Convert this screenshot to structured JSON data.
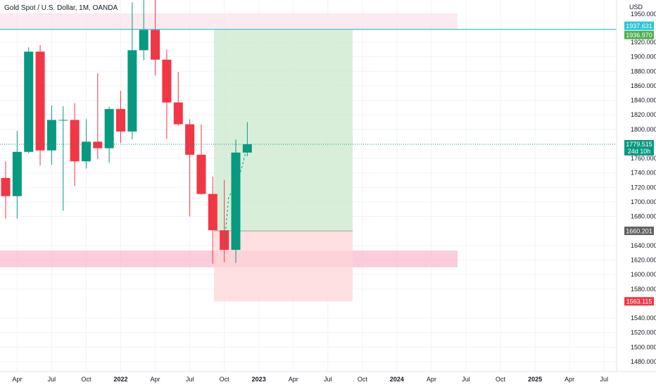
{
  "header": {
    "title": "Gold Spot / U.S. Dollar, 1M, OANDA",
    "currency": "USD"
  },
  "price_scale": {
    "labels": [
      "1920.000",
      "1900.000",
      "1880.000",
      "1860.000",
      "1840.000",
      "1820.000",
      "1800.000",
      "1760.000",
      "1740.000",
      "1720.000",
      "1700.000",
      "1680.000",
      "1640.000",
      "1620.000",
      "1600.000",
      "1580.000",
      "1540.000",
      "1520.000",
      "1500.000",
      "1480.000"
    ]
  },
  "time_scale": {
    "labels": [
      {
        "text": "Apr",
        "bold": false
      },
      {
        "text": "Jul",
        "bold": false
      },
      {
        "text": "Oct",
        "bold": false
      },
      {
        "text": "2022",
        "bold": true
      },
      {
        "text": "Apr",
        "bold": false
      },
      {
        "text": "Jul",
        "bold": false
      },
      {
        "text": "Oct",
        "bold": false
      },
      {
        "text": "2023",
        "bold": true
      },
      {
        "text": "Apr",
        "bold": false
      },
      {
        "text": "Jul",
        "bold": false
      },
      {
        "text": "Oct",
        "bold": false
      },
      {
        "text": "2024",
        "bold": true
      },
      {
        "text": "Apr",
        "bold": false
      },
      {
        "text": "Jul",
        "bold": false
      },
      {
        "text": "Oct",
        "bold": false
      },
      {
        "text": "2025",
        "bold": true
      },
      {
        "text": "Apr",
        "bold": false
      },
      {
        "text": "Jul",
        "bold": false
      }
    ]
  },
  "badges": {
    "resistance_price": "1937.631",
    "target_price": "1936.970",
    "current_price": "1779.515",
    "countdown": "24d 10h",
    "entry_price": "1660.201",
    "stop_price": "1563.115",
    "top_clipped": "1950.000"
  },
  "colors": {
    "up": "#089981",
    "down": "#f23645",
    "target_zone": "#c9e7c9",
    "stop_zone": "#ffd6d6",
    "supply_zone": "#fce4ec",
    "demand_zone": "#f8bbd0",
    "resistance_line": "#00bcd4"
  },
  "chart_data": {
    "type": "candlestick",
    "symbol": "Gold Spot / U.S. Dollar",
    "interval": "1M",
    "source": "OANDA",
    "x": [
      "2021-03",
      "2021-04",
      "2021-05",
      "2021-06",
      "2021-07",
      "2021-08",
      "2021-09",
      "2021-10",
      "2021-11",
      "2021-12",
      "2022-01",
      "2022-02",
      "2022-03",
      "2022-04",
      "2022-05",
      "2022-06",
      "2022-07",
      "2022-08",
      "2022-09",
      "2022-10",
      "2022-11",
      "2022-12"
    ],
    "open": [
      1733,
      1708,
      1769,
      1907,
      1771,
      1813,
      1813,
      1756,
      1783,
      1774,
      1828,
      1797,
      1909,
      1937,
      1896,
      1837,
      1807,
      1765,
      1711,
      1661,
      1634,
      1768
    ],
    "high": [
      1756,
      1798,
      1913,
      1916,
      1833,
      1832,
      1836,
      1814,
      1877,
      1831,
      1853,
      1975,
      2070,
      1998,
      1910,
      1879,
      1814,
      1807,
      1735,
      1730,
      1786,
      1810
    ],
    "low": [
      1677,
      1677,
      1767,
      1750,
      1751,
      1688,
      1722,
      1746,
      1759,
      1754,
      1781,
      1786,
      1895,
      1874,
      1787,
      1805,
      1680,
      1710,
      1615,
      1617,
      1616,
      1763
    ],
    "close": [
      1708,
      1769,
      1907,
      1771,
      1813,
      1813,
      1756,
      1783,
      1774,
      1828,
      1797,
      1909,
      1937,
      1896,
      1837,
      1807,
      1765,
      1711,
      1661,
      1634,
      1768,
      1779.515
    ],
    "ylim": [
      1470,
      1955
    ],
    "position": {
      "entry": 1660.201,
      "target": 1936.97,
      "stop": 1563.115
    },
    "zones": {
      "resistance": 1937.631,
      "supply": [
        1937.631,
        1960
      ],
      "demand": [
        1610,
        1633
      ]
    },
    "grid": true
  }
}
